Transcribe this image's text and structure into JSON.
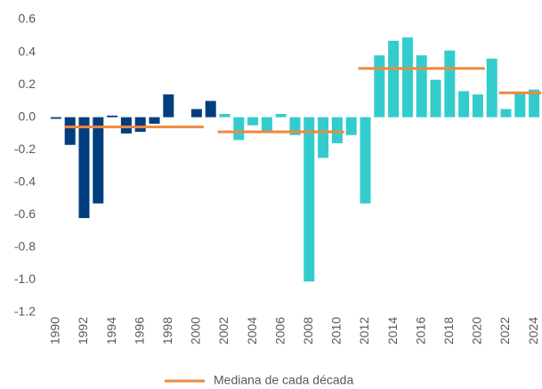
{
  "chart_data": {
    "type": "bar",
    "x": [
      1990,
      1991,
      1992,
      1993,
      1994,
      1995,
      1996,
      1997,
      1998,
      1999,
      2000,
      2001,
      2002,
      2003,
      2004,
      2005,
      2006,
      2007,
      2008,
      2009,
      2010,
      2011,
      2012,
      2013,
      2014,
      2015,
      2016,
      2017,
      2018,
      2019,
      2020,
      2021,
      2022,
      2023,
      2024
    ],
    "values": [
      -0.01,
      -0.17,
      -0.62,
      -0.53,
      0.01,
      -0.1,
      -0.09,
      -0.04,
      0.14,
      0,
      0.05,
      0.1,
      0.02,
      -0.14,
      -0.05,
      -0.09,
      0.02,
      -0.11,
      -1.01,
      -0.25,
      -0.16,
      -0.11,
      -0.53,
      0.38,
      0.47,
      0.49,
      0.38,
      0.23,
      0.41,
      0.16,
      0.14,
      0.36,
      0.05,
      0.15,
      0.17
    ],
    "colors": [
      "#003f7f",
      "#003f7f",
      "#003f7f",
      "#003f7f",
      "#003f7f",
      "#003f7f",
      "#003f7f",
      "#003f7f",
      "#003f7f",
      "#003f7f",
      "#003f7f",
      "#003f7f",
      "#33cccc",
      "#33cccc",
      "#33cccc",
      "#33cccc",
      "#33cccc",
      "#33cccc",
      "#33cccc",
      "#33cccc",
      "#33cccc",
      "#33cccc",
      "#33cccc",
      "#33cccc",
      "#33cccc",
      "#33cccc",
      "#33cccc",
      "#33cccc",
      "#33cccc",
      "#33cccc",
      "#33cccc",
      "#33cccc",
      "#33cccc",
      "#33cccc",
      "#33cccc"
    ],
    "xlim": [
      1989.5,
      2024.5
    ],
    "xticks": [
      1990,
      1992,
      1994,
      1996,
      1998,
      2000,
      2002,
      2004,
      2006,
      2008,
      2010,
      2012,
      2014,
      2016,
      2018,
      2020,
      2022,
      2024
    ],
    "ylim": [
      -1.2,
      0.6
    ],
    "yticks": [
      {
        "value": 0.6,
        "label": "0.6"
      },
      {
        "value": 0.4,
        "label": "0.4"
      },
      {
        "value": 0.2,
        "label": "0.2"
      },
      {
        "value": 0,
        "label": "0.0"
      },
      {
        "value": -0.2,
        "label": "-0.2"
      },
      {
        "value": -0.4,
        "label": "-0.4"
      },
      {
        "value": -0.6,
        "label": "-0.6"
      },
      {
        "value": -0.8,
        "label": "-0.8"
      },
      {
        "value": -1.0,
        "label": "-1.0"
      },
      {
        "value": -1.2,
        "label": "-1.2"
      }
    ],
    "medians": {
      "name": "Mediana de cada década",
      "color": "#f0883c",
      "segments": [
        {
          "start": 1990.6,
          "end": 2000.5,
          "value": -0.06
        },
        {
          "start": 2001.5,
          "end": 2010.5,
          "value": -0.09
        },
        {
          "start": 2011.5,
          "end": 2020.5,
          "value": 0.3
        },
        {
          "start": 2021.5,
          "end": 2024.5,
          "value": 0.15
        }
      ]
    }
  }
}
